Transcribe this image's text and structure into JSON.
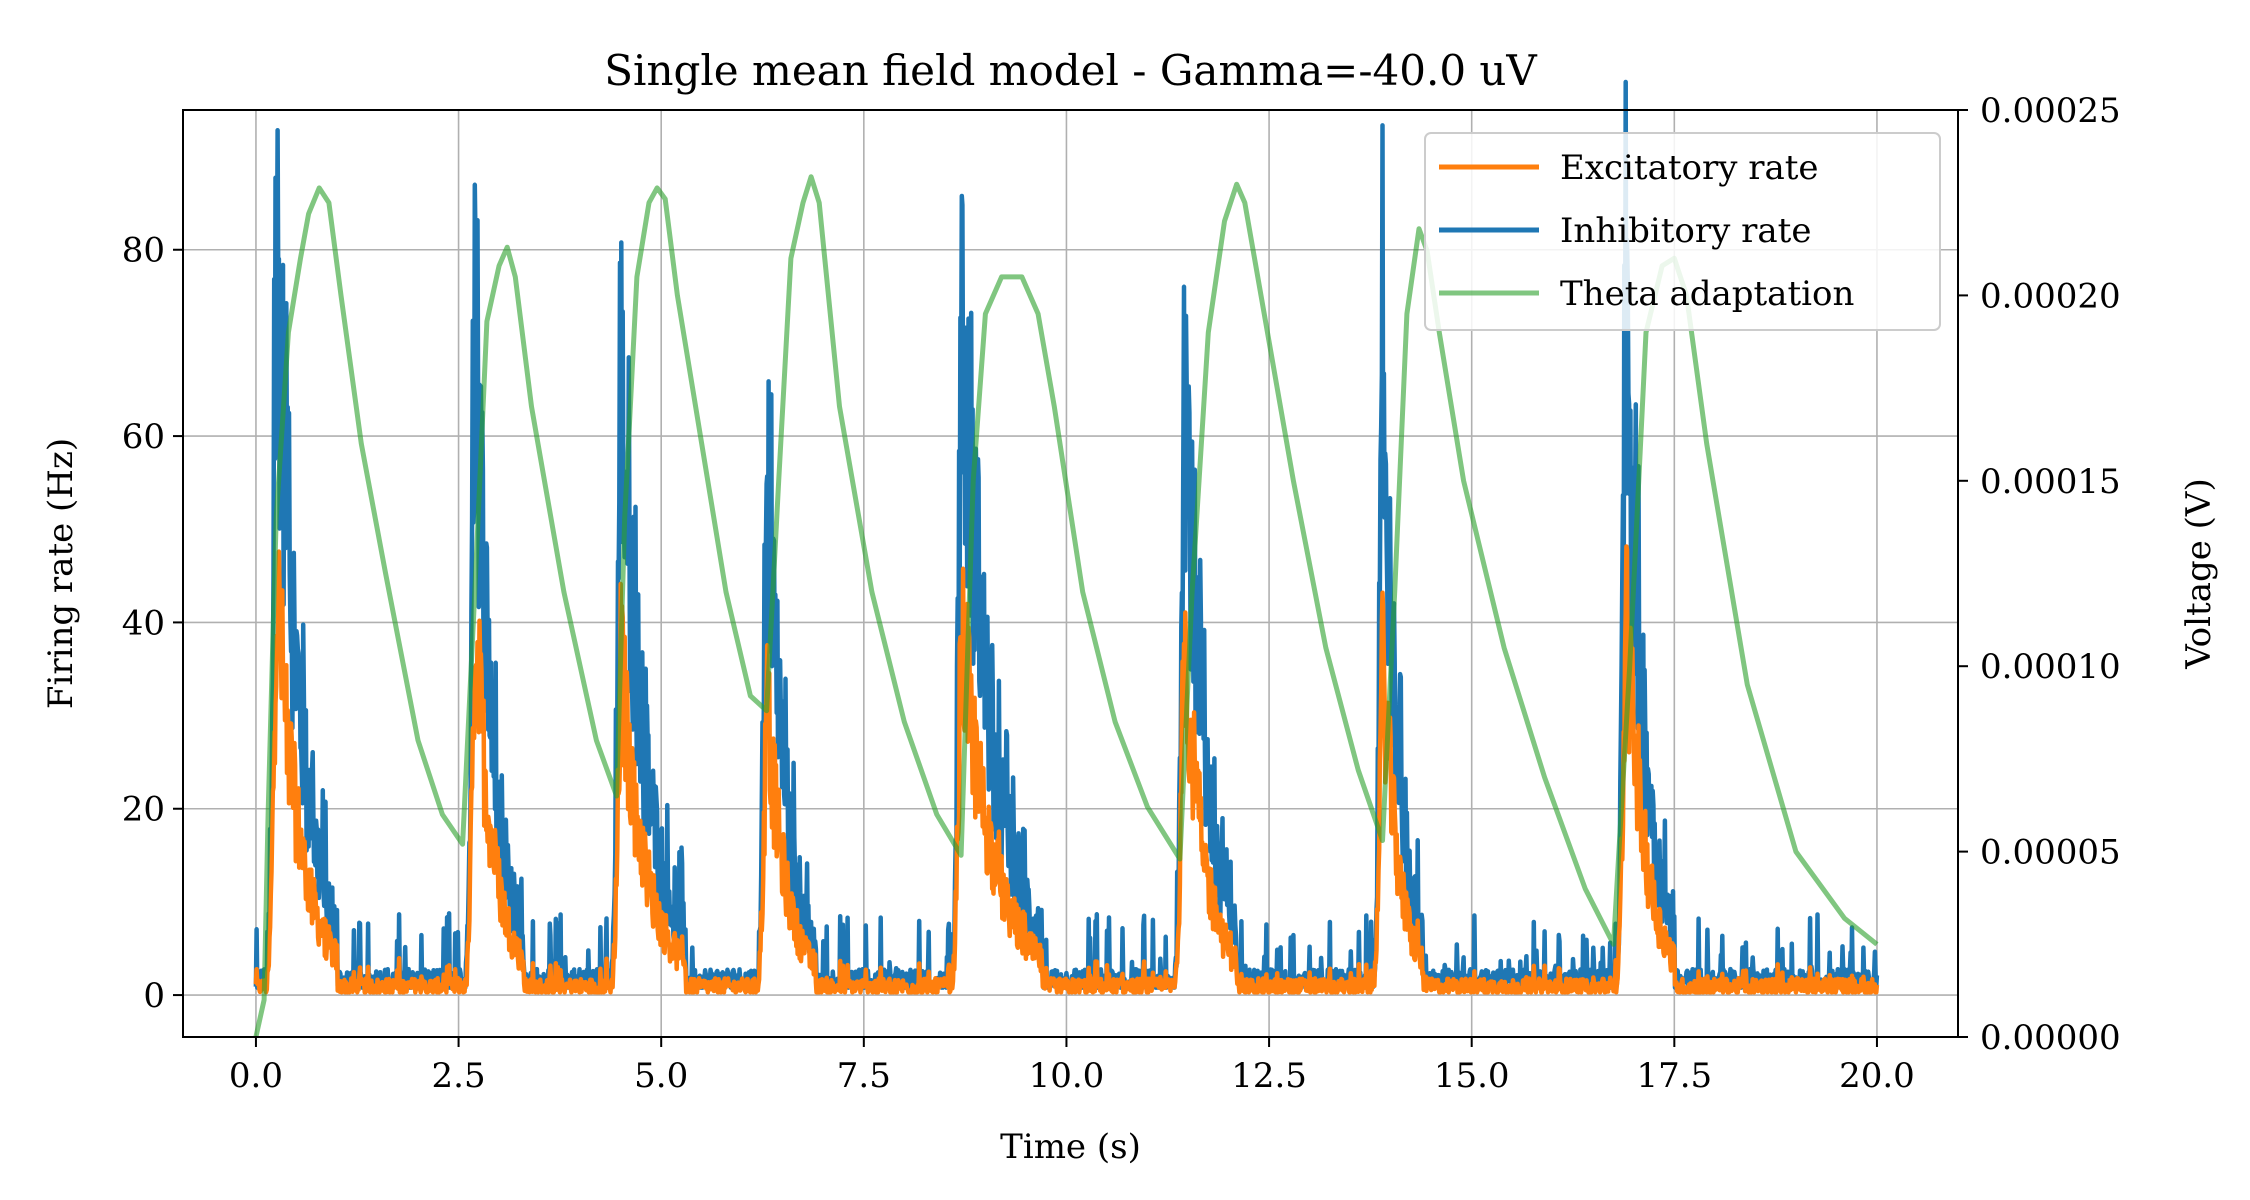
{
  "chart_data": {
    "type": "line",
    "title": "Single mean field model - Gamma=-40.0 uV",
    "xlabel": "Time (s)",
    "ylabel": "Firing rate (Hz)",
    "ylabel_right": "Voltage (V)",
    "xlim": [
      -0.9,
      21.0
    ],
    "ylim": [
      -4.5,
      95
    ],
    "ylim_right": [
      0,
      0.00025
    ],
    "xticks": [
      0.0,
      2.5,
      5.0,
      7.5,
      10.0,
      12.5,
      15.0,
      17.5,
      20.0
    ],
    "xtick_labels": [
      "0.0",
      "2.5",
      "5.0",
      "7.5",
      "10.0",
      "12.5",
      "15.0",
      "17.5",
      "20.0"
    ],
    "yticks": [
      0,
      20,
      40,
      60,
      80
    ],
    "ytick_labels": [
      "0",
      "20",
      "40",
      "60",
      "80"
    ],
    "yticks_right": [
      0,
      5e-05,
      0.0001,
      0.00015,
      0.0002,
      0.00025
    ],
    "ytick_labels_right": [
      "0.00000",
      "0.00005",
      "0.00010",
      "0.00015",
      "0.00020",
      "0.00025"
    ],
    "grid": true,
    "legend_position": "top-right",
    "legend": [
      "Excitatory rate",
      "Inhibitory rate",
      "Theta adaptation"
    ],
    "colors": {
      "excitatory": "#ff7f0e",
      "inhibitory": "#1f77b4",
      "theta": "#2ca02c"
    },
    "bursts": [
      {
        "t": 0.25,
        "e_peak": 44,
        "i_peak": 90,
        "decay_end": 1.0
      },
      {
        "t": 2.7,
        "e_peak": 40,
        "i_peak": 80,
        "decay_end": 3.3
      },
      {
        "t": 4.5,
        "e_peak": 35,
        "i_peak": 72,
        "decay_end": 5.3
      },
      {
        "t": 6.3,
        "e_peak": 31,
        "i_peak": 64,
        "decay_end": 6.9
      },
      {
        "t": 8.7,
        "e_peak": 39,
        "i_peak": 79,
        "decay_end": 9.7
      },
      {
        "t": 11.45,
        "e_peak": 38,
        "i_peak": 77,
        "decay_end": 12.1
      },
      {
        "t": 13.9,
        "e_peak": 36,
        "i_peak": 74,
        "decay_end": 14.4
      },
      {
        "t": 16.9,
        "e_peak": 41,
        "i_peak": 83,
        "decay_end": 17.5
      }
    ],
    "series": [
      {
        "name": "Theta adaptation",
        "axis": "right",
        "x": [
          0.0,
          0.1,
          0.15,
          0.25,
          0.4,
          0.55,
          0.65,
          0.78,
          0.9,
          1.05,
          1.3,
          1.6,
          2.0,
          2.3,
          2.55,
          2.7,
          2.85,
          3.0,
          3.1,
          3.2,
          3.4,
          3.8,
          4.2,
          4.45,
          4.55,
          4.7,
          4.85,
          4.95,
          5.05,
          5.2,
          5.5,
          5.8,
          6.1,
          6.3,
          6.45,
          6.6,
          6.75,
          6.85,
          6.95,
          7.2,
          7.6,
          8.0,
          8.4,
          8.7,
          8.85,
          9.0,
          9.2,
          9.45,
          9.65,
          9.85,
          10.2,
          10.6,
          11.0,
          11.4,
          11.55,
          11.75,
          11.95,
          12.1,
          12.2,
          12.4,
          12.8,
          13.2,
          13.6,
          13.9,
          14.05,
          14.2,
          14.35,
          14.45,
          14.6,
          14.9,
          15.4,
          15.9,
          16.4,
          16.75,
          16.95,
          17.15,
          17.35,
          17.5,
          17.65,
          17.9,
          18.4,
          19.0,
          19.6,
          20.0
        ],
        "y": [
          0.0,
          1e-05,
          6e-05,
          0.00014,
          0.00019,
          0.00021,
          0.000222,
          0.000229,
          0.000225,
          0.0002,
          0.00016,
          0.000125,
          8e-05,
          6e-05,
          5.2e-05,
          0.00012,
          0.000193,
          0.000208,
          0.000213,
          0.000205,
          0.00017,
          0.00012,
          8e-05,
          6.5e-05,
          0.00014,
          0.000205,
          0.000225,
          0.000229,
          0.000226,
          0.0002,
          0.00016,
          0.00012,
          9.2e-05,
          8.8e-05,
          0.00015,
          0.00021,
          0.000225,
          0.000232,
          0.000225,
          0.00017,
          0.00012,
          8.5e-05,
          6e-05,
          4.9e-05,
          0.00015,
          0.000195,
          0.000205,
          0.000205,
          0.000195,
          0.00017,
          0.00012,
          8.5e-05,
          6.2e-05,
          4.8e-05,
          0.00012,
          0.00019,
          0.00022,
          0.00023,
          0.000225,
          0.0002,
          0.00015,
          0.000105,
          7.2e-05,
          5.3e-05,
          0.00012,
          0.000195,
          0.000218,
          0.000212,
          0.00019,
          0.00015,
          0.000105,
          7e-05,
          4e-05,
          2.5e-05,
          0.0001,
          0.00019,
          0.000208,
          0.00021,
          0.0002,
          0.00016,
          9.5e-05,
          5e-05,
          3.2e-05,
          2.5e-05
        ]
      }
    ]
  }
}
